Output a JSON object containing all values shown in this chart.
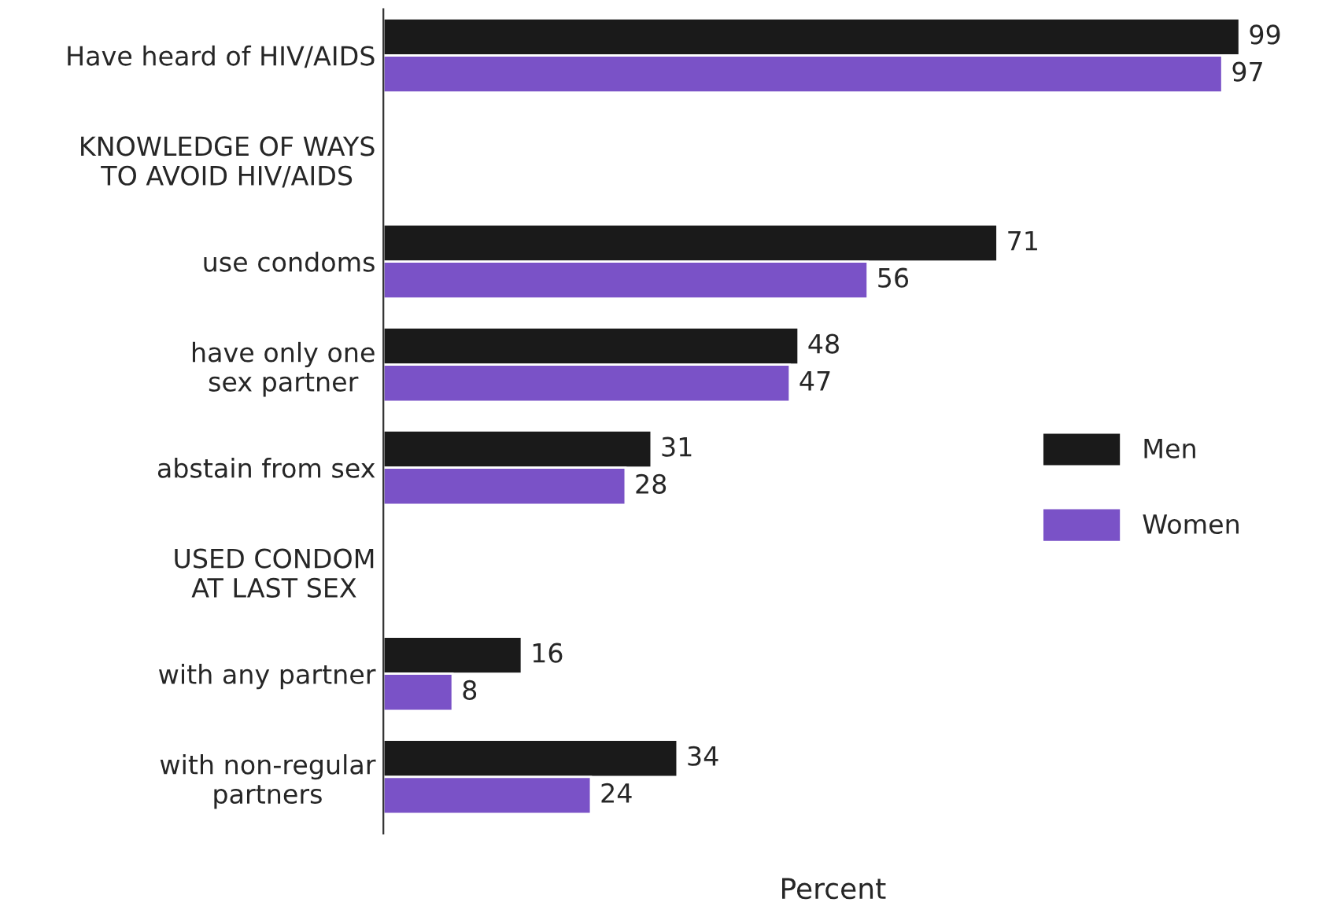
{
  "chart_data": {
    "type": "bar",
    "orientation": "horizontal",
    "xlabel": "Percent",
    "categories": [
      "Have heard of HIV/AIDS",
      "KNOWLEDGE OF WAYS\nTO AVOID HIV/AIDS",
      "use condoms",
      "have only one\nsex partner",
      "abstain from sex",
      "USED CONDOM\nAT LAST SEX",
      "with any partner",
      "with non-regular\npartners"
    ],
    "series": [
      {
        "name": "Men",
        "color": "#1a1a1a",
        "values": [
          99,
          null,
          71,
          48,
          31,
          null,
          16,
          34
        ]
      },
      {
        "name": "Women",
        "color": "#7a52c7",
        "values": [
          97,
          null,
          56,
          47,
          28,
          null,
          8,
          24
        ]
      }
    ],
    "data_labels": true,
    "legend": "right",
    "grid": false
  }
}
